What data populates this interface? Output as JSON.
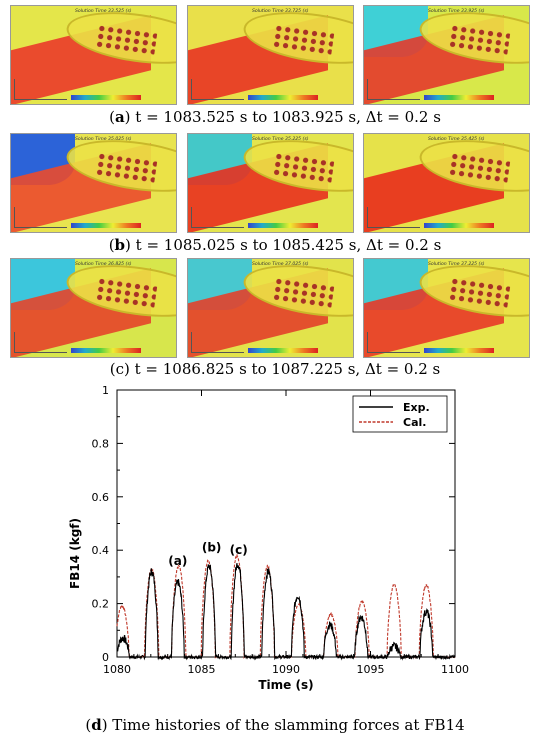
{
  "figure": {
    "captions": [
      {
        "letter": "a",
        "text": ") t = 1083.525 s to 1083.925 s, Δt = 0.2 s"
      },
      {
        "letter": "b",
        "text": ") t = 1085.025 s to 1085.425 s, Δt = 0.2 s"
      },
      {
        "letter": "c",
        "text": ") t = 1086.825 s to 1087.225 s, Δt = 0.2 s"
      },
      {
        "letter": "d",
        "text": ") Time histories of the slamming forces at FB14"
      }
    ],
    "snapshots": [
      {
        "label": "Solution Time 33.525 (s)",
        "bg": "#e4e64a",
        "red": "#ea3a2a",
        "blue": "none"
      },
      {
        "label": "Solution Time 33.725 (s)",
        "bg": "#e9e04a",
        "red": "#e83424",
        "blue": "none"
      },
      {
        "label": "Solution Time 33.925 (s)",
        "bg": "#d8e84a",
        "red": "#e43a2c",
        "blue": "#3fd0d6"
      },
      {
        "label": "Solution Time 35.025 (s)",
        "bg": "#e8e450",
        "red": "#eb4a2c",
        "blue": "#2c63d8"
      },
      {
        "label": "Solution Time 35.225 (s)",
        "bg": "#e3e54e",
        "red": "#e8301f",
        "blue": "#44c8c8"
      },
      {
        "label": "Solution Time 35.425 (s)",
        "bg": "#e6e24a",
        "red": "#e82c1c",
        "blue": "none"
      },
      {
        "label": "Solution Time 36.825 (s)",
        "bg": "#d7e64c",
        "red": "#e6442a",
        "blue": "#3cc6dc"
      },
      {
        "label": "Solution Time 37.025 (s)",
        "bg": "#e2e34b",
        "red": "#e3402a",
        "blue": "#48c8cf"
      },
      {
        "label": "Solution Time 37.225 (s)",
        "bg": "#e6e54c",
        "red": "#e83828",
        "blue": "#44c9d0"
      }
    ]
  },
  "chart_data": {
    "type": "line",
    "xlabel": "Time (s)",
    "ylabel": "FB14 (kgf)",
    "xlim": [
      1080,
      1100
    ],
    "ylim": [
      0,
      1
    ],
    "xticks": [
      1080,
      1085,
      1090,
      1095,
      1100
    ],
    "yticks": [
      0,
      0.2,
      0.4,
      0.6,
      0.8,
      1
    ],
    "legend": {
      "placement": "top-right",
      "entries": [
        "Exp.",
        "Cal."
      ]
    },
    "colors": {
      "Exp.": "#000000",
      "Cal.": "#c0392b"
    },
    "annotations": [
      {
        "text": "(a)",
        "x": 1083.6,
        "y": 0.33
      },
      {
        "text": "(b)",
        "x": 1085.6,
        "y": 0.38
      },
      {
        "text": "(c)",
        "x": 1087.2,
        "y": 0.37
      }
    ],
    "series": [
      {
        "name": "Exp.",
        "peaks": [
          {
            "t": 1080.35,
            "h": 0.07
          },
          {
            "t": 1082.05,
            "h": 0.32
          },
          {
            "t": 1083.6,
            "h": 0.28
          },
          {
            "t": 1085.45,
            "h": 0.34
          },
          {
            "t": 1087.15,
            "h": 0.35
          },
          {
            "t": 1088.95,
            "h": 0.32
          },
          {
            "t": 1090.7,
            "h": 0.23
          },
          {
            "t": 1092.6,
            "h": 0.12
          },
          {
            "t": 1094.45,
            "h": 0.15
          },
          {
            "t": 1096.4,
            "h": 0.04
          },
          {
            "t": 1098.3,
            "h": 0.17
          }
        ]
      },
      {
        "name": "Cal.",
        "peaks": [
          {
            "t": 1080.3,
            "h": 0.19
          },
          {
            "t": 1082.05,
            "h": 0.33
          },
          {
            "t": 1083.65,
            "h": 0.34
          },
          {
            "t": 1085.4,
            "h": 0.36
          },
          {
            "t": 1087.1,
            "h": 0.38
          },
          {
            "t": 1088.9,
            "h": 0.34
          },
          {
            "t": 1090.75,
            "h": 0.2
          },
          {
            "t": 1092.65,
            "h": 0.16
          },
          {
            "t": 1094.5,
            "h": 0.21
          },
          {
            "t": 1096.4,
            "h": 0.27
          },
          {
            "t": 1098.3,
            "h": 0.27
          }
        ]
      }
    ]
  }
}
